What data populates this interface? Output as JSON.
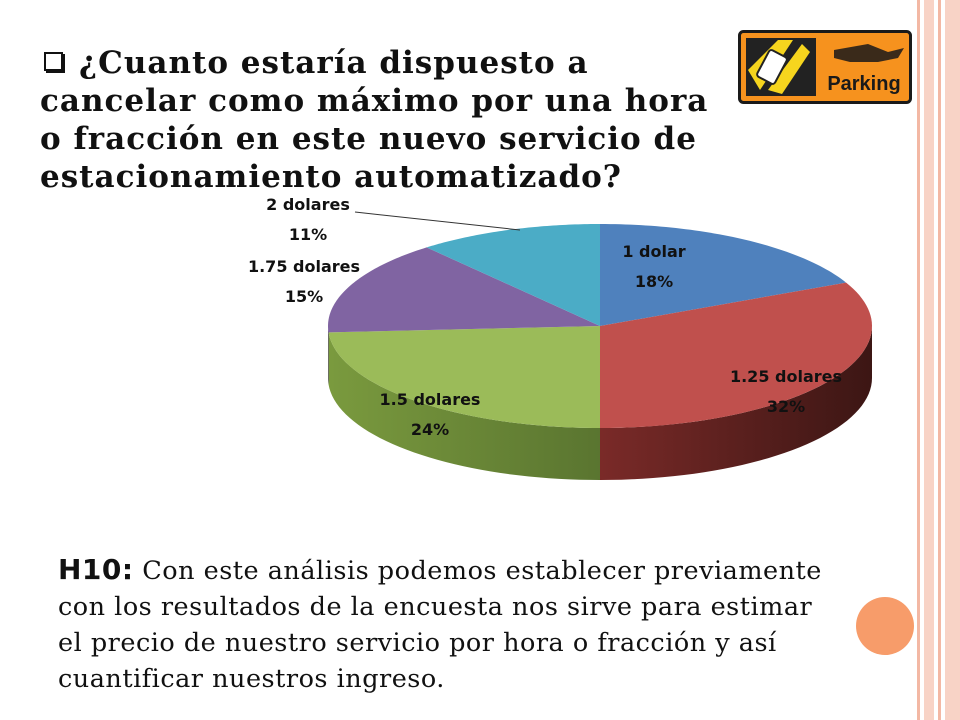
{
  "slide": {
    "question": "¿Cuanto estaría dispuesto a cancelar como máximo por una hora o fracción en este nuevo servicio de estacionamiento automatizado?",
    "logo_text": "Parking",
    "conclusion_label": "H10:",
    "conclusion_text": "Con este análisis podemos establecer previamente con los resultados de la encuesta nos sirve para estimar el precio de nuestro servicio por hora o fracción y así cuantificar nuestros ingreso."
  },
  "chart_data": {
    "type": "pie",
    "style": "3d",
    "categories": [
      "1 dolar",
      "1.25 dolares",
      "1.5 dolares",
      "1.75 dolares",
      "2 dolares"
    ],
    "values": [
      18,
      32,
      24,
      15,
      11
    ],
    "value_labels": [
      "18%",
      "32%",
      "24%",
      "15%",
      "11%"
    ],
    "colors": [
      "#4f81bd",
      "#c0504d",
      "#9bbb59",
      "#8064a2",
      "#4bacc6"
    ],
    "legend": "none"
  },
  "colors": {
    "accent_stripe": "#f6c6b5",
    "accent_circle": "#f79c6a"
  }
}
